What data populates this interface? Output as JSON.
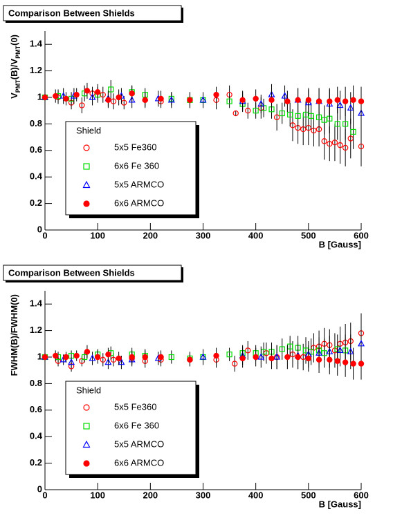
{
  "chart_data": [
    {
      "type": "scatter",
      "title": "Comparison Between Shields",
      "x_label": "B [Gauss]",
      "y_label_parts": [
        {
          "text": "V"
        },
        {
          "text": "PMT",
          "sub": true
        },
        {
          "text": "(B)/V"
        },
        {
          "text": "PMT",
          "sub": true
        },
        {
          "text": "(0)"
        }
      ],
      "xlim": [
        0,
        600
      ],
      "ylim": [
        0,
        1.5
      ],
      "xticks": [
        0,
        100,
        200,
        300,
        400,
        500,
        600
      ],
      "yticks": [
        0,
        0.2,
        0.4,
        0.6,
        0.8,
        1,
        1.2,
        1.4
      ],
      "legend_title": "Shield",
      "series": [
        {
          "name": "5x5 Fe360",
          "color": "#ff0000",
          "marker": "circle",
          "filled": false,
          "x": [
            0,
            25,
            50,
            70,
            90,
            110,
            130,
            150,
            190,
            220,
            275,
            325,
            350,
            362,
            385,
            410,
            440,
            470,
            480,
            490,
            500,
            510,
            520,
            530,
            540,
            550,
            560,
            570,
            580,
            600
          ],
          "values": [
            1.0,
            1.0,
            0.96,
            0.94,
            1.03,
            1.02,
            0.97,
            0.96,
            0.98,
            0.97,
            0.98,
            0.98,
            1.02,
            0.88,
            0.9,
            0.92,
            0.85,
            0.79,
            0.77,
            0.76,
            0.77,
            0.75,
            0.76,
            0.67,
            0.65,
            0.66,
            0.64,
            0.62,
            0.69,
            0.63
          ],
          "errors": [
            0.05,
            0.05,
            0.05,
            0.06,
            0.05,
            0.06,
            0.06,
            0.05,
            0.05,
            0.05,
            0.06,
            0.07,
            0.07,
            0.02,
            0.06,
            0.08,
            0.1,
            0.12,
            0.12,
            0.12,
            0.13,
            0.12,
            0.13,
            0.14,
            0.13,
            0.14,
            0.14,
            0.14,
            0.15,
            0.15
          ]
        },
        {
          "name": "6x6 Fe 360",
          "color": "#00dd00",
          "marker": "square",
          "filled": false,
          "x": [
            0,
            25,
            50,
            75,
            100,
            125,
            165,
            190,
            240,
            275,
            300,
            350,
            375,
            400,
            415,
            430,
            450,
            465,
            480,
            495,
            505,
            520,
            530,
            540,
            555,
            570,
            585
          ],
          "values": [
            1.0,
            1.01,
            0.99,
            1.03,
            1.02,
            1.06,
            1.04,
            1.02,
            0.99,
            0.98,
            0.98,
            0.97,
            0.95,
            0.9,
            0.92,
            0.91,
            0.88,
            0.87,
            0.86,
            0.87,
            0.86,
            0.85,
            0.83,
            0.84,
            0.8,
            0.8,
            0.74
          ],
          "errors": [
            0.04,
            0.05,
            0.05,
            0.06,
            0.06,
            0.07,
            0.05,
            0.05,
            0.05,
            0.05,
            0.05,
            0.05,
            0.06,
            0.06,
            0.07,
            0.07,
            0.08,
            0.09,
            0.09,
            0.1,
            0.1,
            0.1,
            0.11,
            0.11,
            0.12,
            0.12,
            0.13
          ]
        },
        {
          "name": "5x5 ARMCO",
          "color": "#0000ff",
          "marker": "triangle",
          "filled": false,
          "x": [
            0,
            35,
            55,
            90,
            120,
            145,
            165,
            215,
            240,
            300,
            375,
            410,
            430,
            455,
            480,
            500,
            520,
            540,
            560,
            580,
            600
          ],
          "values": [
            1.0,
            1.01,
            1.01,
            1.0,
            0.99,
            1.01,
            0.98,
            0.99,
            0.98,
            0.98,
            0.97,
            0.95,
            1.02,
            1.01,
            0.98,
            0.96,
            0.97,
            0.95,
            0.94,
            0.92,
            0.88
          ],
          "errors": [
            0.05,
            0.06,
            0.06,
            0.06,
            0.06,
            0.06,
            0.06,
            0.06,
            0.06,
            0.06,
            0.07,
            0.07,
            0.08,
            0.08,
            0.09,
            0.1,
            0.1,
            0.11,
            0.11,
            0.12,
            0.12
          ]
        },
        {
          "name": "6x6 ARMCO",
          "color": "#ff0000",
          "marker": "circle",
          "filled": true,
          "x": [
            0,
            20,
            40,
            60,
            80,
            100,
            120,
            140,
            165,
            190,
            220,
            275,
            325,
            375,
            400,
            430,
            460,
            480,
            500,
            520,
            540,
            555,
            570,
            585,
            600
          ],
          "values": [
            1.0,
            1.01,
            0.99,
            1.02,
            1.05,
            1.04,
            0.98,
            1.0,
            1.03,
            0.98,
            0.99,
            0.98,
            1.02,
            0.98,
            0.99,
            0.98,
            0.97,
            0.98,
            0.98,
            0.97,
            0.97,
            0.98,
            0.97,
            0.98,
            0.97
          ],
          "errors": [
            0.04,
            0.05,
            0.05,
            0.05,
            0.06,
            0.06,
            0.06,
            0.06,
            0.06,
            0.06,
            0.06,
            0.06,
            0.06,
            0.07,
            0.07,
            0.08,
            0.08,
            0.09,
            0.09,
            0.1,
            0.1,
            0.1,
            0.11,
            0.11,
            0.11
          ]
        }
      ]
    },
    {
      "type": "scatter",
      "title": "Comparison Between Shields",
      "x_label": "B [Gauss]",
      "y_label_parts": [
        {
          "text": "FWHM(B)/FWHM(0)"
        }
      ],
      "xlim": [
        0,
        600
      ],
      "ylim": [
        0,
        1.5
      ],
      "xticks": [
        0,
        100,
        200,
        300,
        400,
        500,
        600
      ],
      "yticks": [
        0,
        0.2,
        0.4,
        0.6,
        0.8,
        1,
        1.2,
        1.4
      ],
      "legend_title": "Shield",
      "series": [
        {
          "name": "5x5 Fe360",
          "color": "#ff0000",
          "marker": "circle",
          "filled": false,
          "x": [
            0,
            25,
            50,
            70,
            110,
            130,
            165,
            190,
            220,
            275,
            325,
            360,
            385,
            420,
            440,
            470,
            490,
            510,
            520,
            530,
            540,
            550,
            560,
            570,
            580,
            600
          ],
          "values": [
            1.0,
            0.97,
            0.93,
            0.97,
            0.98,
            0.98,
            0.99,
            0.97,
            0.98,
            0.98,
            0.98,
            0.95,
            1.05,
            1.03,
            1.0,
            1.02,
            1.0,
            1.07,
            1.08,
            1.1,
            1.09,
            1.05,
            1.1,
            1.11,
            1.12,
            1.18
          ],
          "errors": [
            0.04,
            0.04,
            0.04,
            0.04,
            0.05,
            0.05,
            0.05,
            0.05,
            0.05,
            0.05,
            0.06,
            0.06,
            0.07,
            0.08,
            0.09,
            0.1,
            0.1,
            0.11,
            0.12,
            0.12,
            0.12,
            0.13,
            0.13,
            0.14,
            0.14,
            0.15
          ]
        },
        {
          "name": "6x6 Fe 360",
          "color": "#00dd00",
          "marker": "square",
          "filled": false,
          "x": [
            0,
            25,
            50,
            75,
            100,
            125,
            165,
            190,
            240,
            275,
            300,
            350,
            375,
            400,
            415,
            430,
            450,
            465,
            480,
            495,
            505,
            520,
            530,
            555,
            570
          ],
          "values": [
            1.0,
            1.0,
            1.01,
            1.0,
            1.02,
            1.03,
            1.02,
            1.01,
            1.0,
            0.99,
            1.0,
            1.02,
            1.03,
            1.03,
            1.04,
            1.04,
            1.06,
            1.08,
            1.07,
            1.05,
            1.04,
            1.05,
            1.03,
            1.06,
            1.05
          ],
          "errors": [
            0.03,
            0.04,
            0.04,
            0.04,
            0.04,
            0.05,
            0.05,
            0.05,
            0.05,
            0.05,
            0.05,
            0.05,
            0.06,
            0.06,
            0.07,
            0.07,
            0.08,
            0.08,
            0.09,
            0.1,
            0.1,
            0.1,
            0.11,
            0.11,
            0.12
          ]
        },
        {
          "name": "5x5 ARMCO",
          "color": "#0000ff",
          "marker": "triangle",
          "filled": false,
          "x": [
            0,
            35,
            50,
            90,
            120,
            145,
            165,
            215,
            300,
            375,
            410,
            440,
            480,
            500,
            520,
            540,
            560,
            580,
            600
          ],
          "values": [
            1.0,
            0.98,
            0.96,
            0.99,
            0.96,
            0.96,
            0.98,
            0.99,
            1.0,
            1.01,
            1.0,
            1.0,
            1.01,
            1.02,
            1.03,
            1.04,
            1.05,
            1.04,
            1.1
          ],
          "errors": [
            0.04,
            0.04,
            0.04,
            0.05,
            0.05,
            0.05,
            0.05,
            0.05,
            0.06,
            0.07,
            0.08,
            0.09,
            0.1,
            0.1,
            0.11,
            0.12,
            0.12,
            0.13,
            0.14
          ]
        },
        {
          "name": "6x6 ARMCO",
          "color": "#ff0000",
          "marker": "circle",
          "filled": true,
          "x": [
            0,
            20,
            40,
            60,
            80,
            100,
            120,
            140,
            165,
            190,
            220,
            275,
            325,
            375,
            400,
            430,
            460,
            480,
            500,
            520,
            540,
            555,
            570,
            585,
            600
          ],
          "values": [
            1.0,
            1.01,
            1.0,
            1.01,
            1.04,
            1.0,
            1.02,
            0.99,
            1.0,
            1.0,
            1.0,
            0.98,
            1.01,
            0.99,
            1.0,
            0.99,
            1.0,
            1.0,
            0.99,
            0.98,
            0.98,
            0.97,
            0.96,
            0.95,
            0.95
          ],
          "errors": [
            0.03,
            0.04,
            0.04,
            0.04,
            0.05,
            0.05,
            0.05,
            0.05,
            0.05,
            0.05,
            0.05,
            0.05,
            0.06,
            0.07,
            0.07,
            0.08,
            0.09,
            0.09,
            0.1,
            0.1,
            0.11,
            0.11,
            0.11,
            0.12,
            0.12
          ]
        }
      ]
    }
  ]
}
